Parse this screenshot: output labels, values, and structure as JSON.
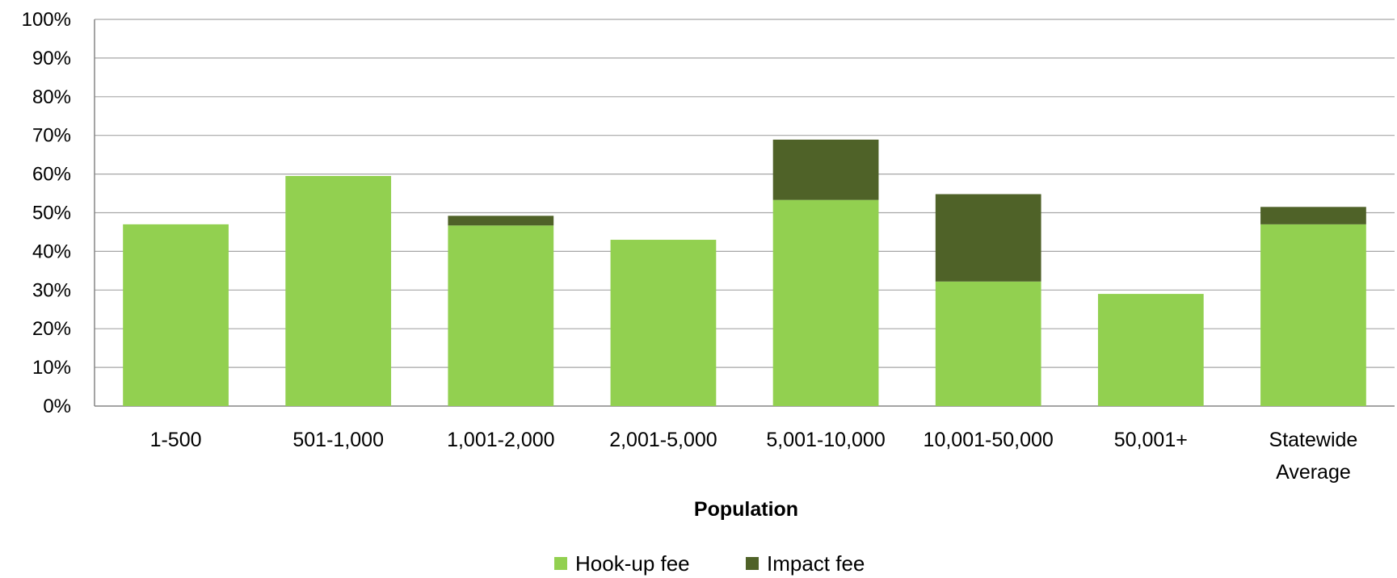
{
  "chart_data": {
    "type": "bar",
    "stacked": true,
    "title": "",
    "xlabel": "Population",
    "ylabel": "",
    "ylim": [
      0,
      100
    ],
    "y_ticks": [
      "0%",
      "10%",
      "20%",
      "30%",
      "40%",
      "50%",
      "60%",
      "70%",
      "80%",
      "90%",
      "100%"
    ],
    "categories": [
      [
        "1-500"
      ],
      [
        "501-1,000"
      ],
      [
        "1,001-2,000"
      ],
      [
        "2,001-5,000"
      ],
      [
        "5,001-10,000"
      ],
      [
        "10,001-50,000"
      ],
      [
        "50,001+"
      ],
      [
        "Statewide",
        "Average"
      ]
    ],
    "series": [
      {
        "name": "Hook-up fee",
        "color": "#92d050",
        "values": [
          47,
          59.5,
          46.7,
          43,
          53.3,
          32.2,
          29,
          47
        ]
      },
      {
        "name": "Impact fee",
        "color": "#4f6228",
        "values": [
          0,
          0,
          2.5,
          0,
          15.6,
          22.6,
          0,
          4.5
        ]
      }
    ],
    "grid": true,
    "legend_position": "bottom"
  }
}
